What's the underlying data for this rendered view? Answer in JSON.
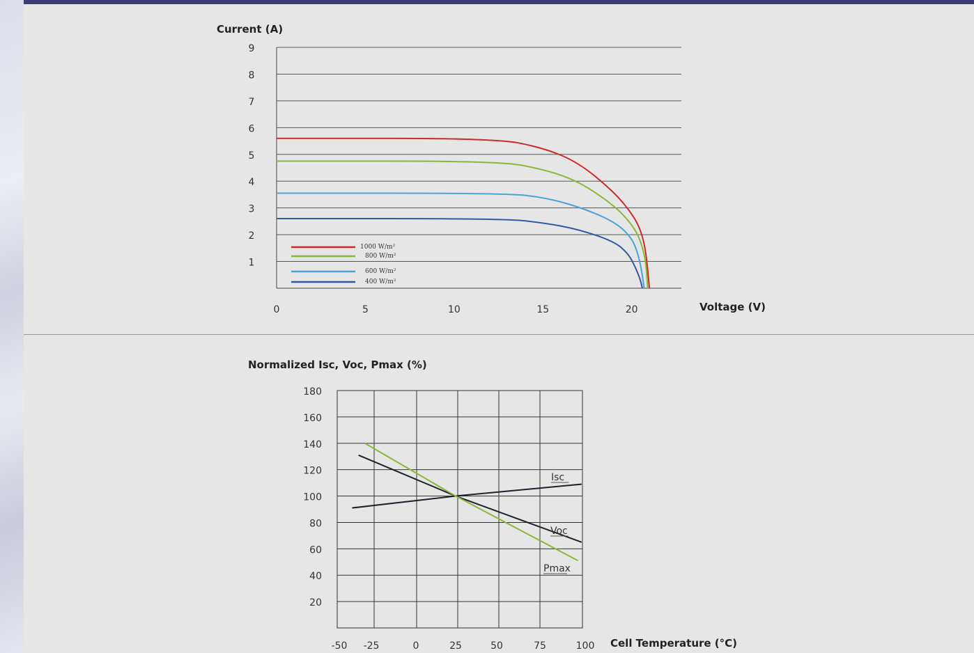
{
  "chart_data": [
    {
      "type": "line",
      "ylabel": "Current (A)",
      "xlabel": "Voltage (V)",
      "xlim": [
        0,
        22.8
      ],
      "ylim": [
        0,
        9
      ],
      "x_ticks": [
        "0",
        "5",
        "10",
        "15",
        "20"
      ],
      "y_ticks": [
        "9",
        "8",
        "7",
        "6",
        "5",
        "4",
        "3",
        "2",
        "1"
      ],
      "grid": "horizontal",
      "legend_position": "bottom-left",
      "series": [
        {
          "name": "1000 W/m²",
          "color": "#cc2a2a",
          "isc": 5.6,
          "voc": 21.0,
          "knee_start": 12.3,
          "points": [
            [
              0,
              5.6
            ],
            [
              12.3,
              5.6
            ],
            [
              15,
              5.25
            ],
            [
              17,
              4.7
            ],
            [
              19,
              3.6
            ],
            [
              20,
              2.8
            ],
            [
              20.5,
              2.2
            ],
            [
              20.8,
              1.4
            ],
            [
              21.0,
              0
            ]
          ]
        },
        {
          "name": "800 W/m²",
          "color": "#8ab73a",
          "isc": 4.75,
          "voc": 20.9,
          "knee_start": 12.5,
          "points": [
            [
              0,
              4.75
            ],
            [
              12.5,
              4.75
            ],
            [
              15,
              4.45
            ],
            [
              17,
              4.0
            ],
            [
              19,
              3.1
            ],
            [
              20,
              2.4
            ],
            [
              20.5,
              1.8
            ],
            [
              20.8,
              1.0
            ],
            [
              20.9,
              0
            ]
          ]
        },
        {
          "name": "600 W/m²",
          "color": "#4aa3d6",
          "isc": 3.55,
          "voc": 20.7,
          "knee_start": 12.8,
          "points": [
            [
              0,
              3.55
            ],
            [
              12.8,
              3.55
            ],
            [
              15,
              3.4
            ],
            [
              17,
              3.05
            ],
            [
              19,
              2.5
            ],
            [
              20,
              1.9
            ],
            [
              20.4,
              1.2
            ],
            [
              20.6,
              0.5
            ],
            [
              20.7,
              0
            ]
          ]
        },
        {
          "name": "400 W/m²",
          "color": "#2f58a8",
          "isc": 2.6,
          "voc": 20.6,
          "knee_start": 12.7,
          "points": [
            [
              0,
              2.6
            ],
            [
              12.7,
              2.6
            ],
            [
              15,
              2.45
            ],
            [
              17,
              2.2
            ],
            [
              19,
              1.75
            ],
            [
              19.8,
              1.3
            ],
            [
              20.2,
              0.8
            ],
            [
              20.5,
              0.3
            ],
            [
              20.6,
              0
            ]
          ]
        }
      ]
    },
    {
      "type": "line",
      "ylabel": "Normalized Isc, Voc, Pmax (%)",
      "xlabel": "Cell Temperature (°C)",
      "xlim": [
        -50,
        100
      ],
      "ylim": [
        0,
        180
      ],
      "x_ticks": [
        "-50",
        "-25",
        "0",
        "25",
        "50",
        "75",
        "100"
      ],
      "y_ticks": [
        "180",
        "160",
        "140",
        "120",
        "100",
        "80",
        "60",
        "40",
        "20"
      ],
      "grid": "both",
      "series": [
        {
          "name": "Isc",
          "color": "#1f1f2e",
          "points": [
            [
              -40,
              91
            ],
            [
              25,
              100
            ],
            [
              98,
              109
            ]
          ]
        },
        {
          "name": "Voc",
          "color": "#1f1f2e",
          "points": [
            [
              -35,
              131
            ],
            [
              25,
              100
            ],
            [
              98,
              65
            ]
          ]
        },
        {
          "name": "Pmax",
          "color": "#8ab73a",
          "points": [
            [
              -30,
              140
            ],
            [
              25,
              100
            ],
            [
              96,
              51
            ]
          ]
        }
      ]
    }
  ]
}
